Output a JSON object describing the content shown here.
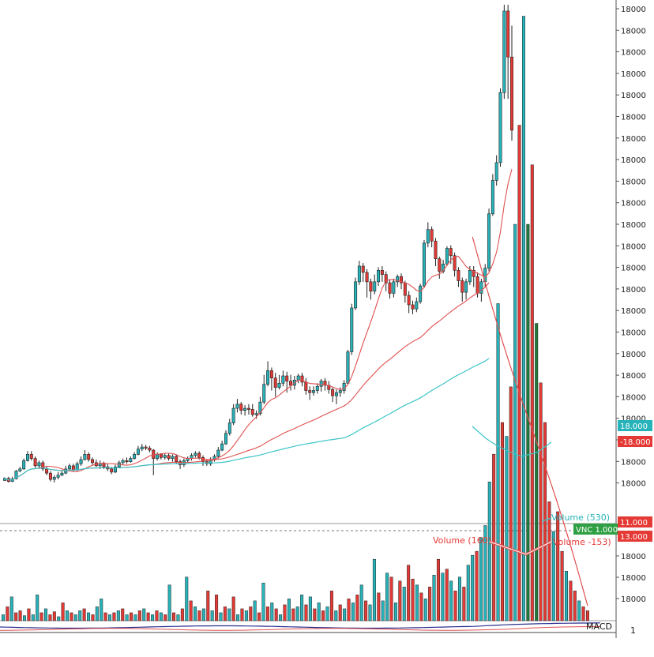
{
  "chart_data": {
    "type": "candlestick",
    "title": "",
    "xlabel": "",
    "ylabel": "",
    "price_axis_labels": [
      "18000",
      "18000",
      "18000",
      "18000",
      "18000",
      "18000",
      "18000",
      "18000",
      "18000",
      "18000",
      "18000",
      "18000",
      "18000",
      "18000",
      "18000",
      "18000",
      "18000",
      "18000",
      "18000",
      "18000",
      "18000",
      "18000",
      "18000"
    ],
    "volume_axis_labels": [
      "18000",
      "18000",
      "18000"
    ],
    "price_badges": [
      {
        "text": "18.000",
        "color": "#27b3ba"
      },
      {
        "text": "-18.000",
        "color": "#e53935"
      },
      {
        "text": "11.000",
        "color": "#e53935"
      },
      {
        "text": "VNC 1.000",
        "color": "#2ea043"
      },
      {
        "text": "13.000",
        "color": "#e53935"
      }
    ],
    "annotations": [
      {
        "text": "Volume (530)",
        "color": "#27b3ba"
      },
      {
        "text": "Volume (160)",
        "color": "#e53935"
      },
      {
        "text": "Volume -153)",
        "color": "#e53935"
      }
    ],
    "macd_label": "MACD",
    "macd_axis_label": "1",
    "colors": {
      "up": "#27b3ba",
      "down": "#e53935",
      "dark_down": "#1f7a3a",
      "ma_red": "#e05050",
      "ma_teal": "#3bc5c8",
      "macd_blue": "#2b2f8f"
    },
    "price_range": [
      0,
      1000
    ],
    "volume_range": [
      0,
      100
    ],
    "candles": [
      [
        90,
        94,
        89,
        96,
        "u"
      ],
      [
        94,
        88,
        86,
        97,
        "d"
      ],
      [
        88,
        93,
        87,
        97,
        "u"
      ],
      [
        93,
        108,
        92,
        110,
        "u"
      ],
      [
        108,
        112,
        106,
        116,
        "u"
      ],
      [
        112,
        128,
        110,
        132,
        "u"
      ],
      [
        128,
        140,
        126,
        146,
        "u"
      ],
      [
        140,
        132,
        128,
        146,
        "d"
      ],
      [
        132,
        118,
        114,
        136,
        "d"
      ],
      [
        118,
        124,
        112,
        128,
        "u"
      ],
      [
        124,
        112,
        108,
        128,
        "d"
      ],
      [
        112,
        104,
        100,
        118,
        "d"
      ],
      [
        104,
        92,
        88,
        108,
        "d"
      ],
      [
        92,
        96,
        86,
        100,
        "u"
      ],
      [
        96,
        100,
        92,
        106,
        "u"
      ],
      [
        100,
        104,
        98,
        110,
        "u"
      ],
      [
        104,
        112,
        102,
        118,
        "u"
      ],
      [
        112,
        118,
        108,
        122,
        "u"
      ],
      [
        118,
        110,
        106,
        122,
        "d"
      ],
      [
        110,
        122,
        108,
        126,
        "u"
      ],
      [
        122,
        130,
        118,
        136,
        "u"
      ],
      [
        130,
        140,
        128,
        148,
        "u"
      ],
      [
        140,
        130,
        126,
        144,
        "d"
      ],
      [
        130,
        124,
        120,
        134,
        "d"
      ],
      [
        124,
        118,
        116,
        130,
        "d"
      ],
      [
        118,
        122,
        112,
        128,
        "u"
      ],
      [
        122,
        116,
        112,
        126,
        "d"
      ],
      [
        116,
        112,
        108,
        122,
        "d"
      ],
      [
        112,
        106,
        102,
        116,
        "d"
      ],
      [
        106,
        116,
        104,
        120,
        "u"
      ],
      [
        116,
        124,
        114,
        128,
        "u"
      ],
      [
        124,
        128,
        120,
        132,
        "u"
      ],
      [
        128,
        126,
        122,
        134,
        "d"
      ],
      [
        126,
        132,
        124,
        136,
        "u"
      ],
      [
        132,
        140,
        130,
        144,
        "u"
      ],
      [
        140,
        150,
        138,
        156,
        "u"
      ],
      [
        150,
        154,
        146,
        160,
        "u"
      ],
      [
        154,
        152,
        148,
        158,
        "d"
      ],
      [
        152,
        148,
        144,
        156,
        "d"
      ],
      [
        148,
        132,
        100,
        150,
        "d"
      ],
      [
        132,
        140,
        128,
        144,
        "u"
      ],
      [
        140,
        134,
        130,
        142,
        "d"
      ],
      [
        134,
        138,
        130,
        142,
        "u"
      ],
      [
        138,
        132,
        128,
        142,
        "d"
      ],
      [
        132,
        136,
        126,
        140,
        "u"
      ],
      [
        136,
        126,
        122,
        140,
        "d"
      ],
      [
        126,
        120,
        112,
        130,
        "d"
      ],
      [
        120,
        128,
        116,
        132,
        "u"
      ],
      [
        128,
        132,
        124,
        136,
        "u"
      ],
      [
        132,
        138,
        128,
        142,
        "u"
      ],
      [
        138,
        142,
        134,
        146,
        "u"
      ],
      [
        142,
        134,
        130,
        146,
        "d"
      ],
      [
        134,
        126,
        118,
        138,
        "d"
      ],
      [
        126,
        122,
        118,
        130,
        "d"
      ],
      [
        122,
        130,
        118,
        134,
        "u"
      ],
      [
        130,
        136,
        126,
        140,
        "u"
      ],
      [
        136,
        148,
        132,
        154,
        "u"
      ],
      [
        148,
        160,
        146,
        166,
        "u"
      ],
      [
        160,
        180,
        158,
        186,
        "u"
      ],
      [
        180,
        200,
        176,
        208,
        "u"
      ],
      [
        200,
        228,
        196,
        236,
        "u"
      ],
      [
        228,
        236,
        220,
        246,
        "u"
      ],
      [
        236,
        224,
        216,
        240,
        "d"
      ],
      [
        224,
        228,
        214,
        234,
        "u"
      ],
      [
        228,
        226,
        216,
        236,
        "d"
      ],
      [
        226,
        216,
        212,
        236,
        "d"
      ],
      [
        216,
        218,
        208,
        224,
        "u"
      ],
      [
        218,
        240,
        214,
        250,
        "u"
      ],
      [
        240,
        274,
        236,
        292,
        "u"
      ],
      [
        274,
        300,
        270,
        318,
        "u"
      ],
      [
        300,
        286,
        262,
        306,
        "d"
      ],
      [
        286,
        268,
        250,
        296,
        "d"
      ],
      [
        268,
        276,
        264,
        292,
        "u"
      ],
      [
        276,
        290,
        270,
        300,
        "u"
      ],
      [
        290,
        280,
        258,
        298,
        "d"
      ],
      [
        280,
        272,
        262,
        292,
        "d"
      ],
      [
        272,
        282,
        264,
        290,
        "u"
      ],
      [
        282,
        290,
        276,
        294,
        "u"
      ],
      [
        290,
        278,
        270,
        296,
        "d"
      ],
      [
        278,
        262,
        254,
        286,
        "d"
      ],
      [
        262,
        258,
        244,
        270,
        "d"
      ],
      [
        258,
        262,
        252,
        270,
        "u"
      ],
      [
        262,
        270,
        256,
        276,
        "u"
      ],
      [
        270,
        280,
        260,
        284,
        "u"
      ],
      [
        280,
        272,
        262,
        286,
        "d"
      ],
      [
        272,
        264,
        256,
        280,
        "d"
      ],
      [
        264,
        252,
        240,
        268,
        "d"
      ],
      [
        252,
        258,
        236,
        264,
        "u"
      ],
      [
        258,
        262,
        250,
        268,
        "u"
      ],
      [
        262,
        276,
        256,
        282,
        "u"
      ],
      [
        276,
        336,
        274,
        340,
        "u"
      ],
      [
        336,
        420,
        330,
        428,
        "u"
      ],
      [
        420,
        470,
        416,
        478,
        "u"
      ],
      [
        470,
        500,
        464,
        510,
        "u"
      ],
      [
        500,
        488,
        470,
        506,
        "d"
      ],
      [
        488,
        470,
        440,
        494,
        "d"
      ],
      [
        470,
        452,
        436,
        476,
        "d"
      ],
      [
        452,
        470,
        446,
        484,
        "u"
      ],
      [
        470,
        492,
        462,
        498,
        "u"
      ],
      [
        492,
        484,
        470,
        500,
        "d"
      ],
      [
        484,
        468,
        452,
        490,
        "d"
      ],
      [
        468,
        448,
        438,
        474,
        "d"
      ],
      [
        448,
        470,
        440,
        476,
        "u"
      ],
      [
        470,
        480,
        460,
        484,
        "u"
      ],
      [
        480,
        468,
        456,
        486,
        "d"
      ],
      [
        468,
        444,
        430,
        472,
        "d"
      ],
      [
        444,
        426,
        410,
        452,
        "d"
      ],
      [
        426,
        418,
        408,
        434,
        "d"
      ],
      [
        418,
        432,
        412,
        440,
        "u"
      ],
      [
        432,
        462,
        428,
        466,
        "u"
      ],
      [
        462,
        544,
        458,
        550,
        "u"
      ],
      [
        544,
        570,
        536,
        584,
        "u"
      ],
      [
        570,
        548,
        536,
        576,
        "d"
      ],
      [
        548,
        514,
        500,
        554,
        "d"
      ],
      [
        514,
        490,
        476,
        518,
        "d"
      ],
      [
        490,
        504,
        486,
        512,
        "u"
      ],
      [
        504,
        534,
        500,
        538,
        "u"
      ],
      [
        534,
        520,
        504,
        540,
        "d"
      ],
      [
        520,
        492,
        480,
        526,
        "d"
      ],
      [
        492,
        472,
        460,
        498,
        "d"
      ],
      [
        472,
        450,
        432,
        478,
        "d"
      ],
      [
        450,
        470,
        436,
        476,
        "u"
      ],
      [
        470,
        492,
        464,
        500,
        "u"
      ],
      [
        492,
        480,
        460,
        500,
        "d"
      ],
      [
        480,
        448,
        440,
        488,
        "d"
      ],
      [
        448,
        470,
        432,
        476,
        "u"
      ],
      [
        470,
        496,
        460,
        504,
        "u"
      ],
      [
        496,
        600,
        490,
        610,
        "u"
      ],
      [
        600,
        664,
        596,
        676,
        "u"
      ],
      [
        664,
        698,
        654,
        712,
        "u"
      ],
      [
        698,
        832,
        690,
        840,
        "u"
      ],
      [
        832,
        988,
        820,
        1000,
        "u"
      ],
      [
        988,
        900,
        820,
        1000,
        "d"
      ],
      [
        900,
        760,
        740,
        960,
        "d"
      ]
    ],
    "volumes": [
      [
        6,
        "u"
      ],
      [
        14,
        "d"
      ],
      [
        24,
        "u"
      ],
      [
        8,
        "d"
      ],
      [
        10,
        "d"
      ],
      [
        5,
        "u"
      ],
      [
        12,
        "d"
      ],
      [
        6,
        "u"
      ],
      [
        26,
        "u"
      ],
      [
        8,
        "d"
      ],
      [
        12,
        "u"
      ],
      [
        6,
        "d"
      ],
      [
        9,
        "d"
      ],
      [
        4,
        "u"
      ],
      [
        18,
        "d"
      ],
      [
        10,
        "u"
      ],
      [
        8,
        "d"
      ],
      [
        6,
        "u"
      ],
      [
        10,
        "u"
      ],
      [
        12,
        "d"
      ],
      [
        8,
        "u"
      ],
      [
        6,
        "d"
      ],
      [
        14,
        "u"
      ],
      [
        22,
        "u"
      ],
      [
        8,
        "d"
      ],
      [
        6,
        "u"
      ],
      [
        8,
        "d"
      ],
      [
        10,
        "u"
      ],
      [
        12,
        "d"
      ],
      [
        6,
        "u"
      ],
      [
        8,
        "d"
      ],
      [
        6,
        "u"
      ],
      [
        10,
        "d"
      ],
      [
        12,
        "u"
      ],
      [
        8,
        "d"
      ],
      [
        6,
        "u"
      ],
      [
        10,
        "d"
      ],
      [
        8,
        "u"
      ],
      [
        6,
        "d"
      ],
      [
        36,
        "u"
      ],
      [
        8,
        "d"
      ],
      [
        6,
        "u"
      ],
      [
        12,
        "d"
      ],
      [
        44,
        "u"
      ],
      [
        20,
        "d"
      ],
      [
        14,
        "u"
      ],
      [
        10,
        "d"
      ],
      [
        12,
        "u"
      ],
      [
        30,
        "d"
      ],
      [
        10,
        "u"
      ],
      [
        26,
        "d"
      ],
      [
        8,
        "u"
      ],
      [
        14,
        "d"
      ],
      [
        12,
        "u"
      ],
      [
        24,
        "d"
      ],
      [
        6,
        "u"
      ],
      [
        12,
        "d"
      ],
      [
        10,
        "u"
      ],
      [
        14,
        "d"
      ],
      [
        20,
        "u"
      ],
      [
        8,
        "d"
      ],
      [
        38,
        "u"
      ],
      [
        14,
        "d"
      ],
      [
        18,
        "u"
      ],
      [
        12,
        "d"
      ],
      [
        6,
        "u"
      ],
      [
        16,
        "d"
      ],
      [
        22,
        "u"
      ],
      [
        12,
        "d"
      ],
      [
        14,
        "u"
      ],
      [
        26,
        "u"
      ],
      [
        16,
        "d"
      ],
      [
        24,
        "u"
      ],
      [
        12,
        "d"
      ],
      [
        18,
        "u"
      ],
      [
        10,
        "d"
      ],
      [
        14,
        "u"
      ],
      [
        30,
        "d"
      ],
      [
        10,
        "u"
      ],
      [
        16,
        "d"
      ],
      [
        12,
        "u"
      ],
      [
        22,
        "d"
      ],
      [
        18,
        "u"
      ],
      [
        26,
        "d"
      ],
      [
        36,
        "u"
      ],
      [
        20,
        "d"
      ],
      [
        16,
        "u"
      ],
      [
        62,
        "u"
      ],
      [
        28,
        "d"
      ],
      [
        20,
        "u"
      ],
      [
        48,
        "u"
      ],
      [
        44,
        "d"
      ],
      [
        18,
        "u"
      ],
      [
        40,
        "d"
      ],
      [
        34,
        "u"
      ],
      [
        56,
        "d"
      ],
      [
        42,
        "d"
      ],
      [
        36,
        "u"
      ],
      [
        28,
        "d"
      ],
      [
        22,
        "u"
      ],
      [
        34,
        "d"
      ],
      [
        46,
        "u"
      ],
      [
        62,
        "d"
      ],
      [
        48,
        "u"
      ],
      [
        52,
        "d"
      ],
      [
        40,
        "u"
      ],
      [
        30,
        "d"
      ],
      [
        44,
        "u"
      ],
      [
        34,
        "d"
      ],
      [
        56,
        "u"
      ],
      [
        66,
        "u"
      ],
      [
        70,
        "d"
      ],
      [
        84,
        "u"
      ],
      [
        96,
        "u"
      ],
      [
        140,
        "u"
      ],
      [
        168,
        "d"
      ],
      [
        320,
        "u"
      ],
      [
        200,
        "d"
      ],
      [
        186,
        "u"
      ],
      [
        236,
        "d"
      ],
      [
        400,
        "u"
      ],
      [
        500,
        "d"
      ],
      [
        610,
        "u"
      ],
      [
        400,
        "D"
      ],
      [
        460,
        "d"
      ],
      [
        300,
        "D"
      ],
      [
        240,
        "d"
      ],
      [
        200,
        "d"
      ],
      [
        120,
        "d"
      ],
      [
        90,
        "u"
      ],
      [
        110,
        "d"
      ],
      [
        70,
        "d"
      ],
      [
        50,
        "u"
      ],
      [
        40,
        "d"
      ],
      [
        30,
        "d"
      ],
      [
        20,
        "u"
      ],
      [
        14,
        "d"
      ],
      [
        10,
        "d"
      ]
    ]
  }
}
